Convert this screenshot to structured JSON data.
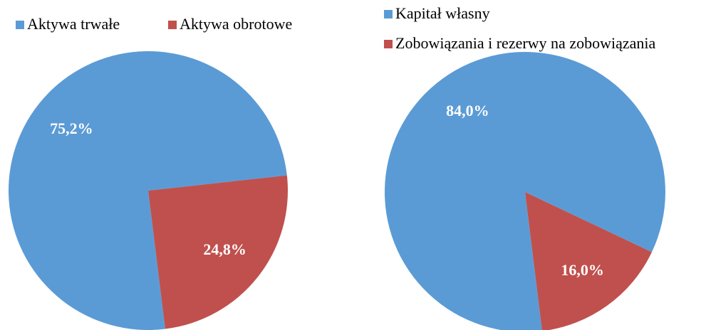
{
  "chart_data": [
    {
      "type": "pie",
      "categories": [
        "Aktywa trwałe",
        "Aktywa obrotowe"
      ],
      "values": [
        75.2,
        24.8
      ],
      "value_labels": [
        "75,2%",
        "24,8%"
      ],
      "colors": [
        "#5b9bd5",
        "#c0504d"
      ]
    },
    {
      "type": "pie",
      "categories": [
        "Kapitał własny",
        "Zobowiązania i rezerwy na zobowiązania"
      ],
      "values": [
        84.0,
        16.0
      ],
      "value_labels": [
        "84,0%",
        "16,0%"
      ],
      "colors": [
        "#5b9bd5",
        "#c0504d"
      ]
    }
  ]
}
